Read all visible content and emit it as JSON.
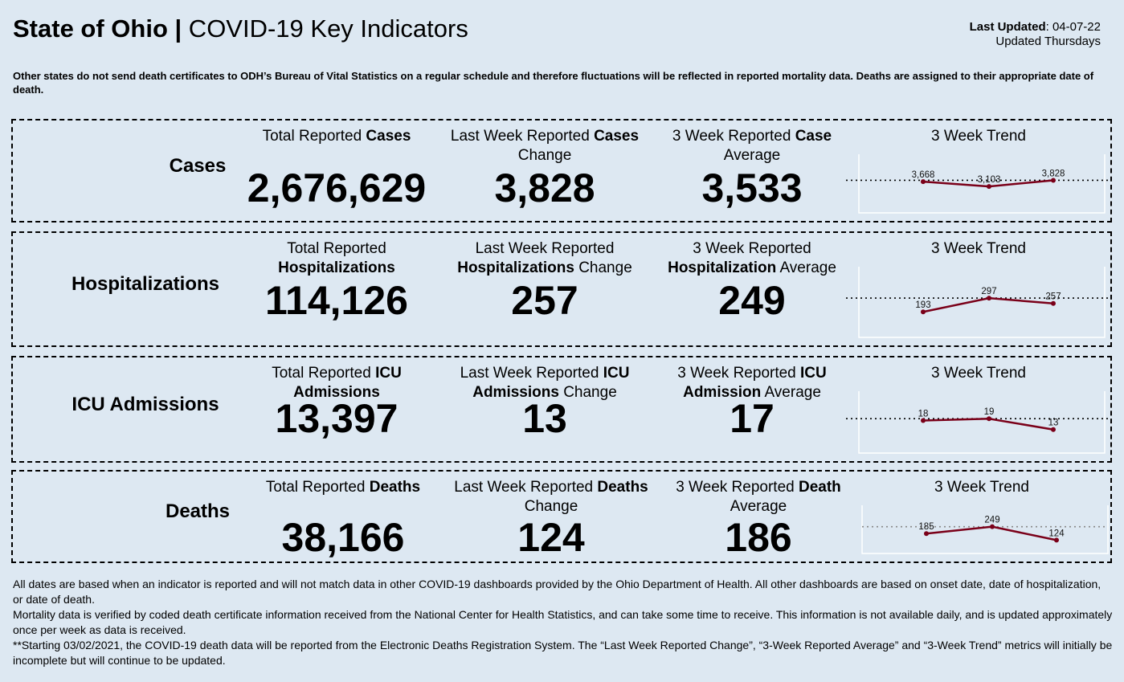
{
  "header": {
    "title_bold": "State of Ohio |",
    "title_rest": " COVID-19 Key Indicators",
    "last_updated_label": "Last Updated",
    "last_updated_value": ": 04-07-22",
    "update_schedule": "Updated Thursdays"
  },
  "note": "Other states do not send death certificates to ODH’s Bureau of Vital Statistics on a regular schedule and therefore fluctuations will be reflected in reported mortality data. Deaths are assigned to their appropriate date of death.",
  "trend_title": "3 Week Trend",
  "colors": {
    "background": "#dde8f2",
    "trend_line": "#7a0019"
  },
  "panels": [
    {
      "name": "Cases",
      "total": {
        "pre": "Total Reported ",
        "bold": "Cases",
        "post": "",
        "value": "2,676,629"
      },
      "change": {
        "pre": "Last Week Reported ",
        "bold": "Cases",
        "post": " Change",
        "value": "3,828"
      },
      "average": {
        "pre": "3 Week Reported ",
        "bold": "Case",
        "post": " Average",
        "value": "3,533"
      },
      "trend": {
        "values": [
          3668,
          3103,
          3828
        ],
        "labels": [
          "3,668",
          "3,103",
          "3,828"
        ]
      }
    },
    {
      "name": "Hospitalizations",
      "total": {
        "pre": "Total Reported ",
        "bold": "Hospitalizations",
        "post": "",
        "value": "114,126"
      },
      "change": {
        "pre": "Last Week Reported ",
        "bold": "Hospitalizations",
        "post": " Change",
        "value": "257"
      },
      "average": {
        "pre": "3 Week Reported ",
        "bold": "Hospitalization",
        "post": " Average",
        "value": "249"
      },
      "trend": {
        "values": [
          193,
          297,
          257
        ],
        "labels": [
          "193",
          "297",
          "257"
        ]
      }
    },
    {
      "name": "ICU Admissions",
      "total": {
        "pre": "Total Reported ",
        "bold": "ICU Admissions",
        "post": "",
        "value": "13,397"
      },
      "change": {
        "pre": "Last Week Reported ",
        "bold": "ICU Admissions",
        "post": " Change",
        "value": "13"
      },
      "average": {
        "pre": "3 Week Reported ",
        "bold": "ICU Admission",
        "post": " Average",
        "value": "17"
      },
      "trend": {
        "values": [
          18,
          19,
          13
        ],
        "labels": [
          "18",
          "19",
          "13"
        ]
      }
    },
    {
      "name": "Deaths",
      "total": {
        "pre": "Total Reported ",
        "bold": "Deaths",
        "post": "",
        "value": "38,166"
      },
      "change": {
        "pre": "Last Week Reported ",
        "bold": "Deaths",
        "post": " Change",
        "value": "124"
      },
      "average": {
        "pre": "3 Week Reported ",
        "bold": "Death",
        "post": " Average",
        "value": "186"
      },
      "trend": {
        "values": [
          185,
          249,
          124
        ],
        "labels": [
          "185",
          "249",
          "124"
        ]
      }
    }
  ],
  "footer": [
    "All dates are based when an indicator is reported and will not match data in other COVID-19 dashboards provided by the Ohio Department of Health. All other dashboards are based on onset date, date of hospitalization, or date of death.",
    "Mortality data is verified by coded death certificate information received from the National Center for Health Statistics, and can take some time to receive. This information is not available daily, and is updated approximately once per week as data is received.",
    "**Starting 03/02/2021, the COVID-19 death data will be reported from the Electronic Deaths Registration System. The “Last Week Reported Change”, “3-Week Reported Average” and “3-Week Trend” metrics will initially be incomplete but will continue to be updated."
  ]
}
